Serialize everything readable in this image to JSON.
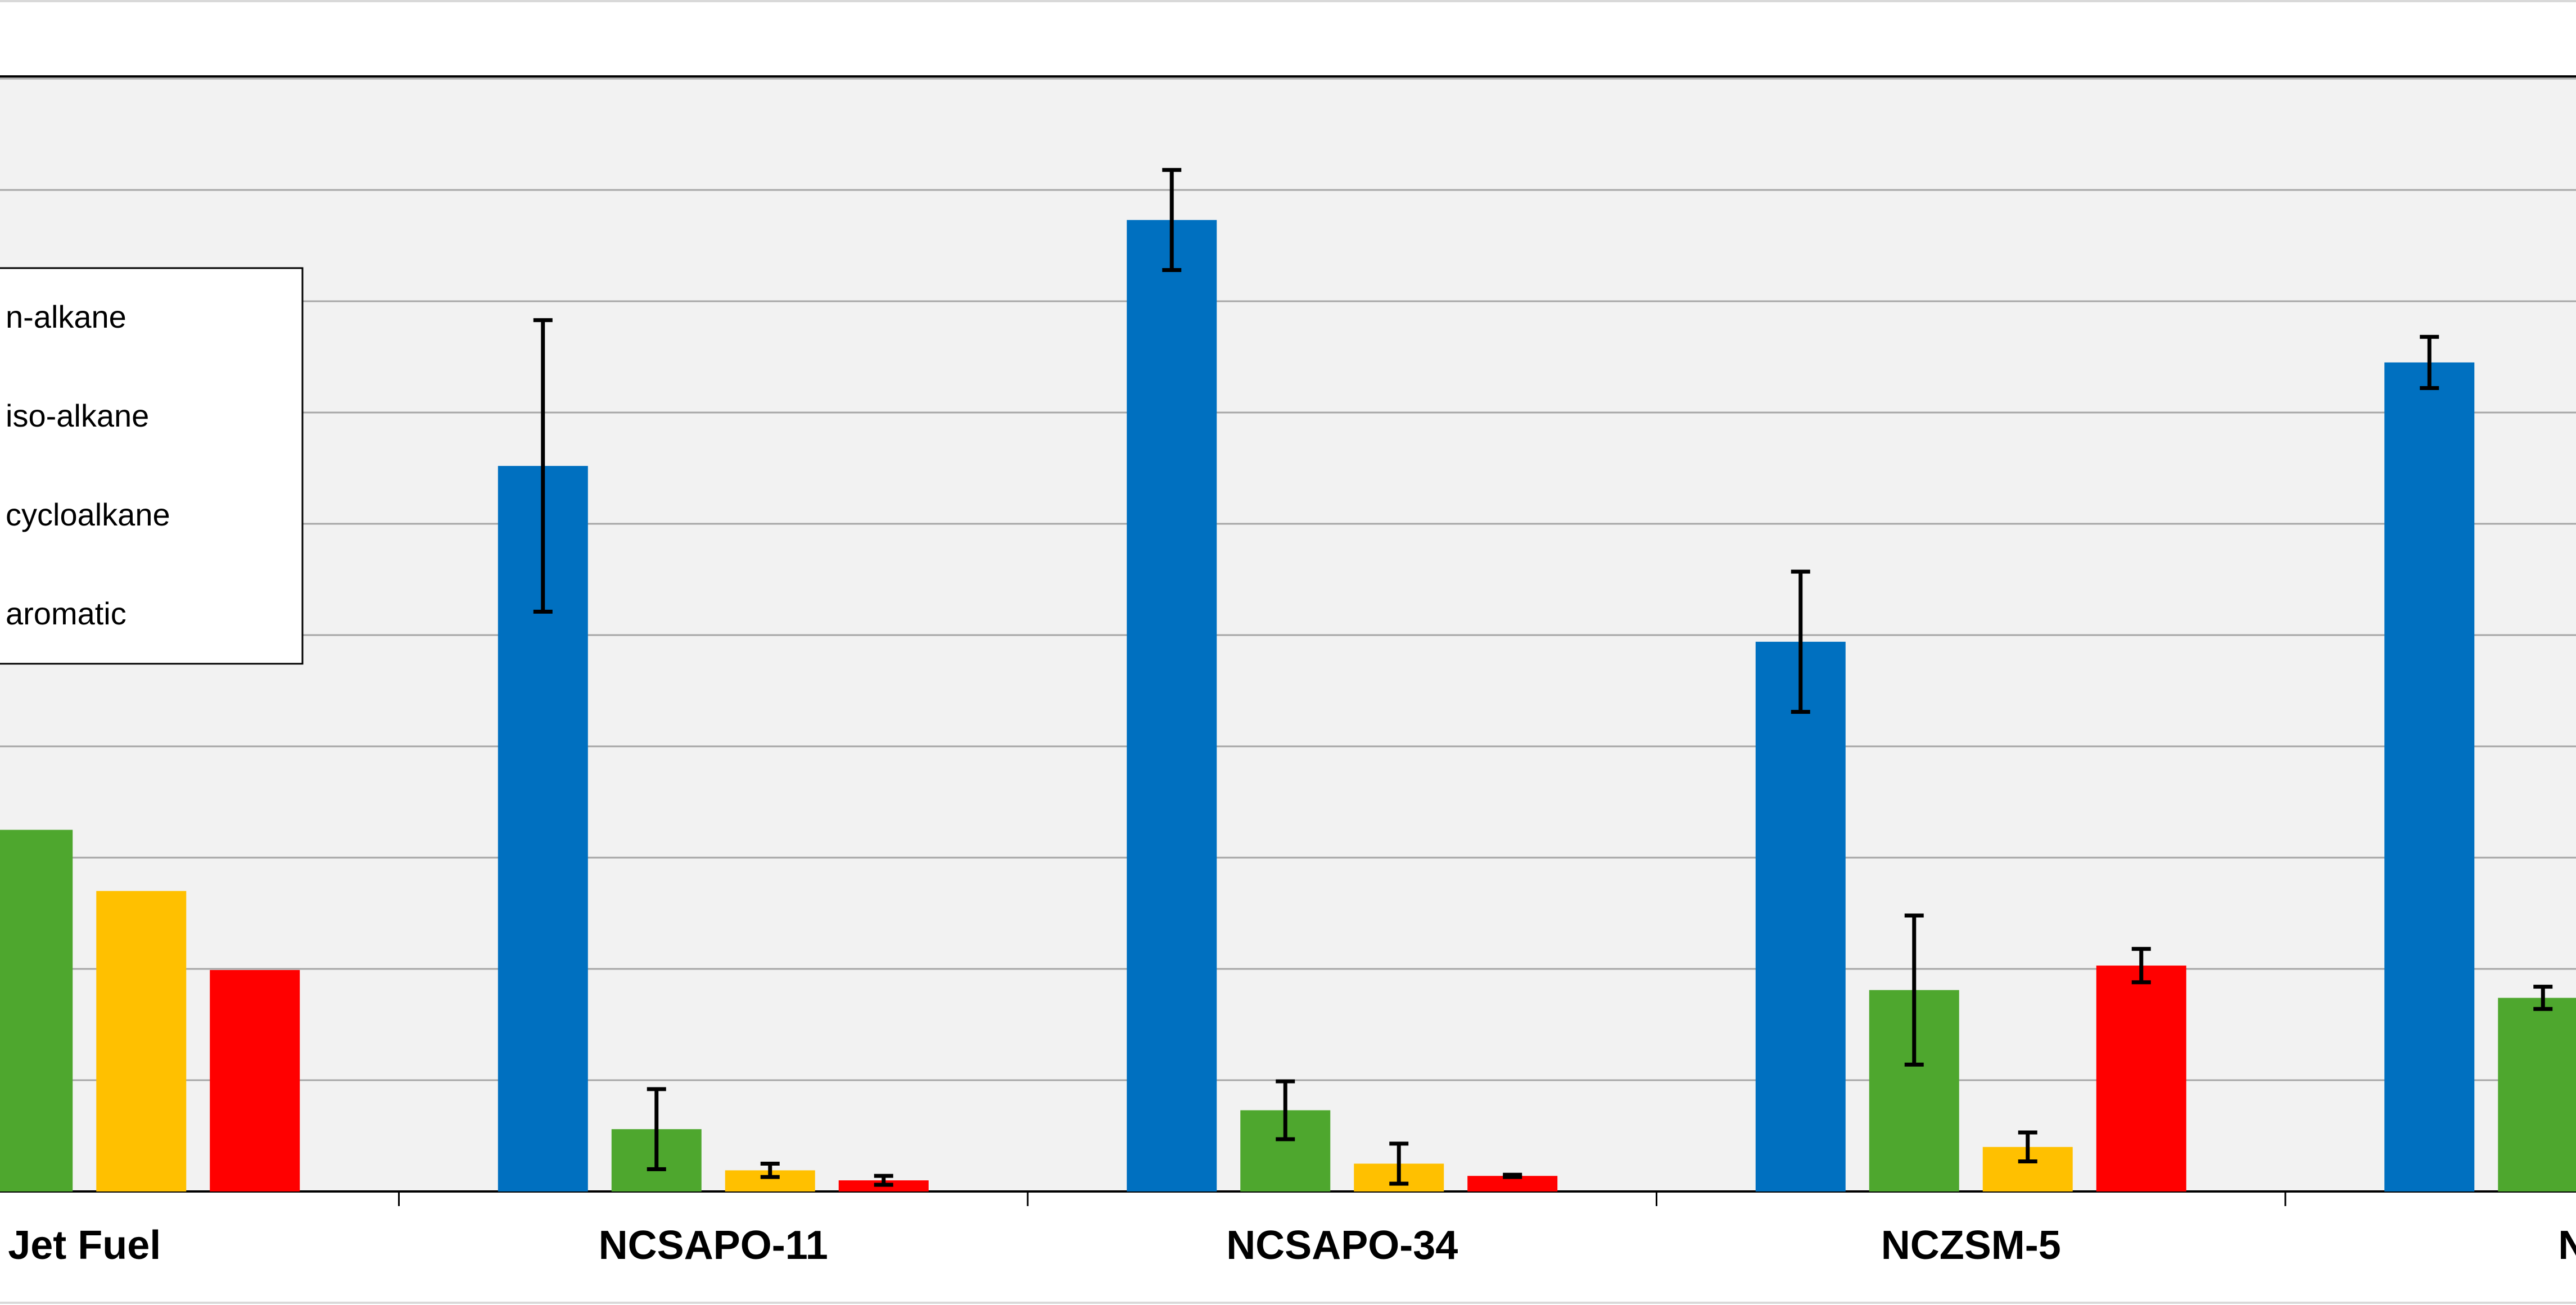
{
  "chart_data": {
    "type": "bar",
    "categories": [
      "Jet Fuel",
      "NCSAPO-11",
      "NCSAPO-34",
      "NCZSM-5",
      "NCZ"
    ],
    "ylim": [
      0,
      100
    ],
    "grid": true,
    "legend": "left",
    "colors": {
      "n-alkane": "#0070C0",
      "iso-alkane": "#4EA72E",
      "cycloalkane": "#FFC000",
      "aromatic": "#FF0000"
    },
    "series": [
      {
        "name": "n-alkane",
        "values": [
          null,
          65.2,
          87.3,
          49.4,
          74.5
        ],
        "errors": [
          null,
          13.1,
          4.5,
          6.3,
          2.3
        ]
      },
      {
        "name": "iso-alkane",
        "values": [
          32.5,
          5.6,
          7.3,
          18.1,
          17.4
        ],
        "errors": [
          null,
          3.6,
          2.6,
          6.7,
          1.0
        ]
      },
      {
        "name": "cycloalkane",
        "values": [
          27.0,
          1.9,
          2.5,
          4.0,
          null
        ],
        "errors": [
          null,
          0.6,
          1.8,
          1.3,
          null
        ]
      },
      {
        "name": "aromatic",
        "values": [
          19.9,
          1.0,
          1.4,
          20.3,
          null
        ],
        "errors": [
          null,
          0.4,
          0.1,
          1.5,
          null
        ]
      }
    ]
  }
}
